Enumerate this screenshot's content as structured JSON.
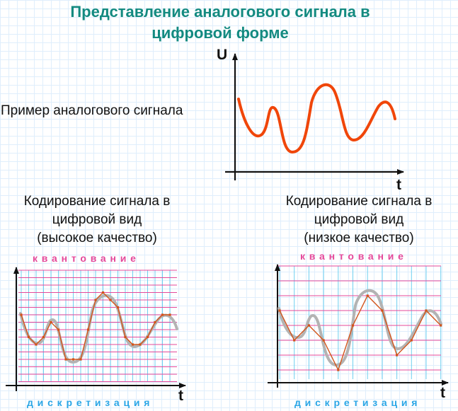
{
  "title": {
    "line1": "Представление аналогового сигнала в",
    "line2": "цифровой форме"
  },
  "example": {
    "label": "Пример аналогового сигнала",
    "y_axis": "U",
    "x_axis": "t"
  },
  "high_quality": {
    "line1": "Кодирование сигнала в",
    "line2": "цифровой вид",
    "line3": "(высокое качество)",
    "quantization": "квантование",
    "sampling": "дискретизация",
    "x_axis": "t"
  },
  "low_quality": {
    "line1": "Кодирование сигнала в",
    "line2": "цифровой вид",
    "line3": "(низкое качество)",
    "quantization": "квантование",
    "sampling": "дискретизация",
    "x_axis": "t"
  },
  "colors": {
    "title": "#138a80",
    "analog_signal": "#f0460a",
    "grey_signal": "#b3b3b3",
    "digital_signal": "#d2541a",
    "quant_lines": "#e4489a",
    "sampling_lines": "#6fd0f0",
    "quant_text": "#e4489a",
    "sampling_text": "#2aa6e6",
    "background_grid": "#dfeefc"
  }
}
